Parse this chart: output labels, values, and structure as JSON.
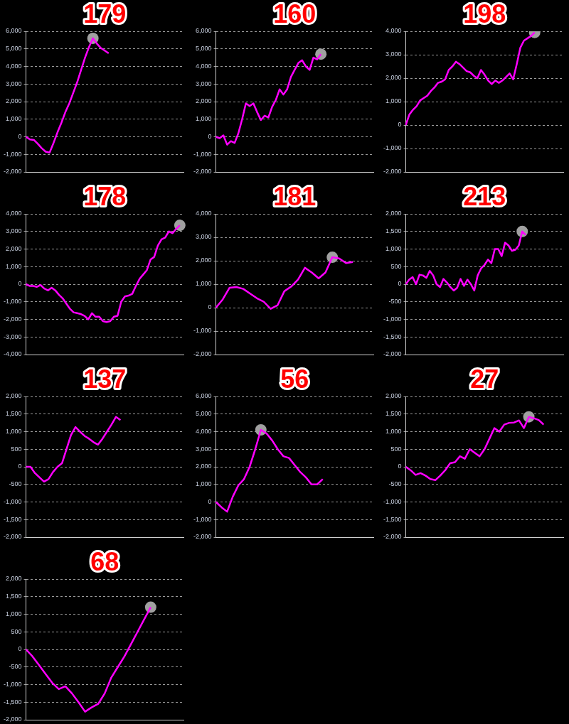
{
  "chart_data": [
    {
      "type": "line",
      "title": "179",
      "categories": [
        null,
        null,
        null,
        null,
        null,
        null,
        null,
        null,
        null,
        null,
        null,
        null,
        null,
        null,
        null,
        null,
        null,
        null,
        null,
        null,
        null,
        null,
        null,
        null,
        null,
        null,
        null,
        null,
        null,
        null,
        null,
        null,
        null,
        null,
        null,
        null,
        null,
        null,
        null,
        null,
        null
      ],
      "series": [
        {
          "color": "#ff00ff",
          "values": [
            0,
            -150,
            -180,
            -400,
            -650,
            -850,
            -900,
            -350,
            250,
            800,
            1400,
            1900,
            2500,
            3100,
            3800,
            4500,
            5100,
            5600,
            5300,
            5050,
            4900,
            4750,
            null,
            null,
            null,
            null,
            null,
            null,
            null,
            null,
            null,
            null,
            null,
            null,
            null,
            null,
            null,
            null,
            null,
            null,
            null
          ]
        },
        {
          "type": "scatter",
          "marker": "circle",
          "color": "#a0a0a0",
          "values": [
            null,
            null,
            null,
            null,
            null,
            null,
            null,
            null,
            null,
            null,
            null,
            null,
            null,
            null,
            null,
            null,
            null,
            5600,
            null,
            null,
            null,
            null,
            null,
            null,
            null,
            null,
            null,
            null,
            null,
            null,
            null,
            null,
            null,
            null,
            null,
            null,
            null,
            null,
            null,
            null,
            null
          ]
        }
      ],
      "ylim": [
        -2000,
        6000
      ],
      "yticks": [
        {
          "value": -2000,
          "label": "-2,000"
        },
        {
          "value": -1000,
          "label": "-1,000"
        },
        0,
        {
          "value": 1000,
          "label": "1,000"
        },
        {
          "value": 2000,
          "label": "2,000"
        },
        {
          "value": 3000,
          "label": "3,000"
        },
        {
          "value": 4000,
          "label": "4,000"
        },
        {
          "value": 5000,
          "label": "5,000"
        },
        {
          "value": 6000,
          "label": "6,000"
        }
      ],
      "grid": "y",
      "tick_labels": "y",
      "marker": "none",
      "legend": false
    },
    {
      "type": "line",
      "title": "160",
      "categories": [
        null,
        null,
        null,
        null,
        null,
        null,
        null,
        null,
        null,
        null,
        null,
        null,
        null,
        null,
        null,
        null,
        null,
        null,
        null,
        null,
        null,
        null,
        null,
        null,
        null,
        null,
        null,
        null,
        null,
        null,
        null,
        null,
        null,
        null,
        null,
        null,
        null,
        null,
        null,
        null,
        null,
        null,
        null
      ],
      "series": [
        {
          "color": "#ff00ff",
          "values": [
            0,
            -80,
            80,
            -450,
            -250,
            -350,
            200,
            1000,
            1900,
            1750,
            1900,
            1400,
            950,
            1200,
            1100,
            1700,
            2100,
            2700,
            2400,
            2700,
            3400,
            3800,
            4200,
            4350,
            4000,
            3800,
            4500,
            4400,
            4700,
            null,
            null,
            null,
            null,
            null,
            null,
            null,
            null,
            null,
            null,
            null,
            null,
            null,
            null
          ]
        },
        {
          "type": "scatter",
          "marker": "circle",
          "color": "#a0a0a0",
          "values": [
            null,
            null,
            null,
            null,
            null,
            null,
            null,
            null,
            null,
            null,
            null,
            null,
            null,
            null,
            null,
            null,
            null,
            null,
            null,
            null,
            null,
            null,
            null,
            null,
            null,
            null,
            null,
            null,
            4700,
            null,
            null,
            null,
            null,
            null,
            null,
            null,
            null,
            null,
            null,
            null,
            null,
            null,
            null
          ]
        }
      ],
      "ylim": [
        -2000,
        6000
      ],
      "yticks": [
        {
          "value": -2000,
          "label": "-2,000"
        },
        {
          "value": -1000,
          "label": "-1,000"
        },
        0,
        {
          "value": 1000,
          "label": "1,000"
        },
        {
          "value": 2000,
          "label": "2,000"
        },
        {
          "value": 3000,
          "label": "3,000"
        },
        {
          "value": 4000,
          "label": "4,000"
        },
        {
          "value": 5000,
          "label": "5,000"
        },
        {
          "value": 6000,
          "label": "6,000"
        }
      ],
      "grid": "y",
      "tick_labels": "y",
      "marker": "none",
      "legend": false
    },
    {
      "type": "line",
      "title": "198",
      "categories": [
        null,
        null,
        null,
        null,
        null,
        null,
        null,
        null,
        null,
        null,
        null,
        null,
        null,
        null,
        null,
        null,
        null,
        null,
        null,
        null,
        null,
        null,
        null,
        null,
        null,
        null,
        null,
        null,
        null,
        null,
        null,
        null,
        null,
        null,
        null,
        null,
        null,
        null,
        null,
        null,
        null,
        null,
        null,
        null,
        null
      ],
      "series": [
        {
          "color": "#ff00ff",
          "values": [
            0,
            450,
            650,
            800,
            1050,
            1150,
            1250,
            1450,
            1600,
            1800,
            1850,
            1950,
            2350,
            2500,
            2700,
            2600,
            2450,
            2300,
            2250,
            2100,
            2000,
            2350,
            2150,
            1900,
            1750,
            1900,
            1800,
            1900,
            2050,
            2200,
            1950,
            2600,
            3300,
            3600,
            3700,
            3800,
            3950,
            null,
            null,
            null,
            null,
            null,
            null,
            null,
            null
          ]
        },
        {
          "type": "scatter",
          "marker": "circle",
          "color": "#a0a0a0",
          "values": [
            null,
            null,
            null,
            null,
            null,
            null,
            null,
            null,
            null,
            null,
            null,
            null,
            null,
            null,
            null,
            null,
            null,
            null,
            null,
            null,
            null,
            null,
            null,
            null,
            null,
            null,
            null,
            null,
            null,
            null,
            null,
            null,
            null,
            null,
            null,
            null,
            3950,
            null,
            null,
            null,
            null,
            null,
            null,
            null,
            null
          ]
        }
      ],
      "ylim": [
        -2000,
        4000
      ],
      "yticks": [
        {
          "value": -2000,
          "label": "-2,000"
        },
        {
          "value": -1000,
          "label": "-1,000"
        },
        0,
        {
          "value": 1000,
          "label": "1,000"
        },
        {
          "value": 2000,
          "label": "2,000"
        },
        {
          "value": 3000,
          "label": "3,000"
        },
        {
          "value": 4000,
          "label": "4,000"
        }
      ],
      "grid": "y",
      "tick_labels": "y",
      "marker": "none",
      "legend": false
    },
    {
      "type": "line",
      "title": "178",
      "categories": [
        null,
        null,
        null,
        null,
        null,
        null,
        null,
        null,
        null,
        null,
        null,
        null,
        null,
        null,
        null,
        null,
        null,
        null,
        null,
        null,
        null,
        null,
        null,
        null,
        null,
        null,
        null,
        null,
        null,
        null,
        null,
        null,
        null,
        null,
        null,
        null,
        null,
        null,
        null,
        null,
        null,
        null,
        null,
        null
      ],
      "series": [
        {
          "color": "#ff00ff",
          "values": [
            0,
            -100,
            -100,
            -150,
            -50,
            -250,
            -350,
            -200,
            -350,
            -600,
            -800,
            -1100,
            -1400,
            -1600,
            -1650,
            -1700,
            -1800,
            -2000,
            -1650,
            -1850,
            -1850,
            -2100,
            -2150,
            -2100,
            -1850,
            -1800,
            -1000,
            -700,
            -650,
            -550,
            -100,
            300,
            550,
            800,
            1400,
            1550,
            2200,
            2550,
            2650,
            3000,
            2900,
            3150,
            3350,
            null
          ]
        },
        {
          "type": "scatter",
          "marker": "circle",
          "color": "#a0a0a0",
          "values": [
            null,
            null,
            null,
            null,
            null,
            null,
            null,
            null,
            null,
            null,
            null,
            null,
            null,
            null,
            null,
            null,
            null,
            null,
            null,
            null,
            null,
            null,
            null,
            null,
            null,
            null,
            null,
            null,
            null,
            null,
            null,
            null,
            null,
            null,
            null,
            null,
            null,
            null,
            null,
            null,
            null,
            null,
            3350,
            null
          ]
        }
      ],
      "ylim": [
        -4000,
        4000
      ],
      "yticks": [
        {
          "value": -4000,
          "label": "-4,000"
        },
        {
          "value": -3000,
          "label": "-3,000"
        },
        {
          "value": -2000,
          "label": "-2,000"
        },
        {
          "value": -1000,
          "label": "-1,000"
        },
        0,
        {
          "value": 1000,
          "label": "1,000"
        },
        {
          "value": 2000,
          "label": "2,000"
        },
        {
          "value": 3000,
          "label": "3,000"
        },
        {
          "value": 4000,
          "label": "4,000"
        }
      ],
      "grid": "y",
      "tick_labels": "y",
      "marker": "none",
      "legend": false
    },
    {
      "type": "line",
      "title": "181",
      "categories": [
        null,
        null,
        null,
        null,
        null,
        null,
        null,
        null,
        null,
        null,
        null,
        null,
        null,
        null,
        null,
        null,
        null,
        null,
        null,
        null,
        null,
        null,
        null,
        null
      ],
      "series": [
        {
          "color": "#ff00ff",
          "values": [
            0,
            350,
            850,
            880,
            800,
            600,
            400,
            250,
            -50,
            100,
            700,
            900,
            1200,
            1700,
            1500,
            1250,
            1500,
            2150,
            2100,
            1900,
            1950,
            null,
            null,
            null
          ]
        },
        {
          "type": "scatter",
          "marker": "circle",
          "color": "#a0a0a0",
          "values": [
            null,
            null,
            null,
            null,
            null,
            null,
            null,
            null,
            null,
            null,
            null,
            null,
            null,
            null,
            null,
            null,
            null,
            2150,
            null,
            null,
            null,
            null,
            null,
            null
          ]
        }
      ],
      "ylim": [
        -2000,
        4000
      ],
      "yticks": [
        {
          "value": -2000,
          "label": "-2,000"
        },
        {
          "value": -1000,
          "label": "-1,000"
        },
        0,
        {
          "value": 1000,
          "label": "1,000"
        },
        {
          "value": 2000,
          "label": "2,000"
        },
        {
          "value": 3000,
          "label": "3,000"
        },
        {
          "value": 4000,
          "label": "4,000"
        }
      ],
      "grid": "y",
      "tick_labels": "y",
      "marker": "none",
      "legend": false
    },
    {
      "type": "line",
      "title": "213",
      "categories": [
        null,
        null,
        null,
        null,
        null,
        null,
        null,
        null,
        null,
        null,
        null,
        null,
        null,
        null,
        null,
        null,
        null,
        null,
        null,
        null,
        null,
        null,
        null,
        null,
        null,
        null,
        null,
        null,
        null,
        null,
        null,
        null,
        null,
        null,
        null,
        null,
        null,
        null,
        null,
        null,
        null,
        null,
        null,
        null,
        null,
        null,
        null
      ],
      "series": [
        {
          "color": "#ff00ff",
          "values": [
            0,
            130,
            200,
            0,
            270,
            250,
            180,
            380,
            250,
            0,
            -80,
            150,
            50,
            -80,
            -180,
            -100,
            150,
            -50,
            130,
            0,
            -180,
            250,
            450,
            550,
            700,
            600,
            1000,
            1000,
            800,
            1180,
            1100,
            950,
            980,
            1100,
            1500,
            1400,
            null,
            null,
            null,
            null,
            null,
            null,
            null,
            null,
            null,
            null,
            null
          ]
        },
        {
          "type": "scatter",
          "marker": "circle",
          "color": "#a0a0a0",
          "values": [
            null,
            null,
            null,
            null,
            null,
            null,
            null,
            null,
            null,
            null,
            null,
            null,
            null,
            null,
            null,
            null,
            null,
            null,
            null,
            null,
            null,
            null,
            null,
            null,
            null,
            null,
            null,
            null,
            null,
            null,
            null,
            null,
            null,
            null,
            1500,
            null,
            null,
            null,
            null,
            null,
            null,
            null,
            null,
            null,
            null,
            null,
            null
          ]
        }
      ],
      "ylim": [
        -2000,
        2000
      ],
      "yticks": [
        {
          "value": -2000,
          "label": "-2,000"
        },
        {
          "value": -1500,
          "label": "-1,500"
        },
        {
          "value": -1000,
          "label": "-1,000"
        },
        -500,
        0,
        500,
        {
          "value": 1000,
          "label": "1,000"
        },
        {
          "value": 1500,
          "label": "1,500"
        },
        {
          "value": 2000,
          "label": "2,000"
        }
      ],
      "grid": "y",
      "tick_labels": "y",
      "marker": "none",
      "legend": false
    },
    {
      "type": "line",
      "title": "137",
      "categories": [
        null,
        null,
        null,
        null,
        null,
        null,
        null,
        null,
        null,
        null,
        null,
        null,
        null,
        null,
        null,
        null,
        null,
        null,
        null,
        null,
        null,
        null,
        null,
        null,
        null,
        null,
        null,
        null,
        null,
        null,
        null,
        null,
        null,
        null,
        null,
        null
      ],
      "series": [
        {
          "color": "#ff00ff",
          "values": [
            0,
            0,
            -180,
            -300,
            -420,
            -350,
            -150,
            0,
            100,
            500,
            900,
            1130,
            1000,
            880,
            800,
            700,
            630,
            800,
            1000,
            1200,
            1420,
            1330,
            null,
            null,
            null,
            null,
            null,
            null,
            null,
            null,
            null,
            null,
            null,
            null,
            null,
            null
          ]
        }
      ],
      "ylim": [
        -2000,
        2000
      ],
      "yticks": [
        {
          "value": -2000,
          "label": "-2,000"
        },
        {
          "value": -1500,
          "label": "-1,500"
        },
        {
          "value": -1000,
          "label": "-1,000"
        },
        -500,
        0,
        500,
        {
          "value": 1000,
          "label": "1,000"
        },
        {
          "value": 1500,
          "label": "1,500"
        },
        {
          "value": 2000,
          "label": "2,000"
        }
      ],
      "grid": "y",
      "tick_labels": "y",
      "marker": "none",
      "legend": false
    },
    {
      "type": "line",
      "title": "56",
      "categories": [
        null,
        null,
        null,
        null,
        null,
        null,
        null,
        null,
        null,
        null,
        null,
        null,
        null,
        null,
        null,
        null,
        null,
        null,
        null,
        null,
        null,
        null,
        null,
        null,
        null,
        null,
        null,
        null,
        null
      ],
      "series": [
        {
          "color": "#ff00ff",
          "values": [
            0,
            -300,
            -550,
            300,
            950,
            1300,
            2000,
            3000,
            4100,
            3900,
            3500,
            3000,
            2600,
            2500,
            2100,
            1700,
            1400,
            1000,
            1000,
            1300,
            null,
            null,
            null,
            null,
            null,
            null,
            null,
            null,
            null
          ]
        },
        {
          "type": "scatter",
          "marker": "circle",
          "color": "#a0a0a0",
          "values": [
            null,
            null,
            null,
            null,
            null,
            null,
            null,
            null,
            4100,
            null,
            null,
            null,
            null,
            null,
            null,
            null,
            null,
            null,
            null,
            null,
            null,
            null,
            null,
            null,
            null,
            null,
            null,
            null,
            null
          ]
        }
      ],
      "ylim": [
        -2000,
        6000
      ],
      "yticks": [
        {
          "value": -2000,
          "label": "-2,000"
        },
        {
          "value": -1000,
          "label": "-1,000"
        },
        0,
        {
          "value": 1000,
          "label": "1,000"
        },
        {
          "value": 2000,
          "label": "2,000"
        },
        {
          "value": 3000,
          "label": "3,000"
        },
        {
          "value": 4000,
          "label": "4,000"
        },
        {
          "value": 5000,
          "label": "5,000"
        },
        {
          "value": 6000,
          "label": "6,000"
        }
      ],
      "grid": "y",
      "tick_labels": "y",
      "marker": "none",
      "legend": false
    },
    {
      "type": "line",
      "title": "27",
      "categories": [
        null,
        null,
        null,
        null,
        null,
        null,
        null,
        null,
        null,
        null,
        null,
        null,
        null,
        null,
        null,
        null,
        null,
        null,
        null,
        null,
        null,
        null,
        null,
        null,
        null,
        null,
        null,
        null,
        null,
        null,
        null,
        null,
        null
      ],
      "series": [
        {
          "color": "#ff00ff",
          "values": [
            0,
            -100,
            -230,
            -180,
            -250,
            -350,
            -380,
            -250,
            -100,
            100,
            130,
            300,
            230,
            500,
            400,
            300,
            500,
            800,
            1100,
            1000,
            1200,
            1250,
            1260,
            1320,
            1100,
            1420,
            1380,
            1330,
            1200,
            null,
            null,
            null,
            null
          ]
        },
        {
          "type": "scatter",
          "marker": "circle",
          "color": "#a0a0a0",
          "values": [
            null,
            null,
            null,
            null,
            null,
            null,
            null,
            null,
            null,
            null,
            null,
            null,
            null,
            null,
            null,
            null,
            null,
            null,
            null,
            null,
            null,
            null,
            null,
            null,
            null,
            1420,
            null,
            null,
            null,
            null,
            null,
            null,
            null
          ]
        }
      ],
      "ylim": [
        -2000,
        2000
      ],
      "yticks": [
        {
          "value": -2000,
          "label": "-2,000"
        },
        {
          "value": -1500,
          "label": "-1,500"
        },
        {
          "value": -1000,
          "label": "-1,000"
        },
        -500,
        0,
        500,
        {
          "value": 1000,
          "label": "1,000"
        },
        {
          "value": 1500,
          "label": "1,500"
        },
        {
          "value": 2000,
          "label": "2,000"
        }
      ],
      "grid": "y",
      "tick_labels": "y",
      "marker": "none",
      "legend": false
    },
    {
      "type": "line",
      "title": "68",
      "categories": [
        null,
        null,
        null,
        null,
        null,
        null,
        null,
        null,
        null,
        null,
        null,
        null,
        null,
        null,
        null,
        null,
        null,
        null,
        null,
        null,
        null,
        null,
        null,
        null,
        null
      ],
      "series": [
        {
          "color": "#ff00ff",
          "values": [
            0,
            -200,
            -450,
            -700,
            -950,
            -1130,
            -1050,
            -1250,
            -1500,
            -1770,
            -1650,
            -1550,
            -1250,
            -800,
            -500,
            -200,
            150,
            500,
            850,
            1200,
            null,
            null,
            null,
            null,
            null
          ]
        },
        {
          "type": "scatter",
          "marker": "circle",
          "color": "#a0a0a0",
          "values": [
            null,
            null,
            null,
            null,
            null,
            null,
            null,
            null,
            null,
            null,
            null,
            null,
            null,
            null,
            null,
            null,
            null,
            null,
            null,
            1200,
            null,
            null,
            null,
            null,
            null
          ]
        }
      ],
      "ylim": [
        -2000,
        2000
      ],
      "yticks": [
        {
          "value": -2000,
          "label": "-2,000"
        },
        {
          "value": -1500,
          "label": "-1,500"
        },
        {
          "value": -1000,
          "label": "-1,000"
        },
        -500,
        0,
        500,
        {
          "value": 1000,
          "label": "1,000"
        },
        {
          "value": 1500,
          "label": "1,500"
        },
        {
          "value": 2000,
          "label": "2,000"
        }
      ],
      "grid": "y",
      "tick_labels": "y",
      "marker": "none",
      "legend": false
    }
  ]
}
